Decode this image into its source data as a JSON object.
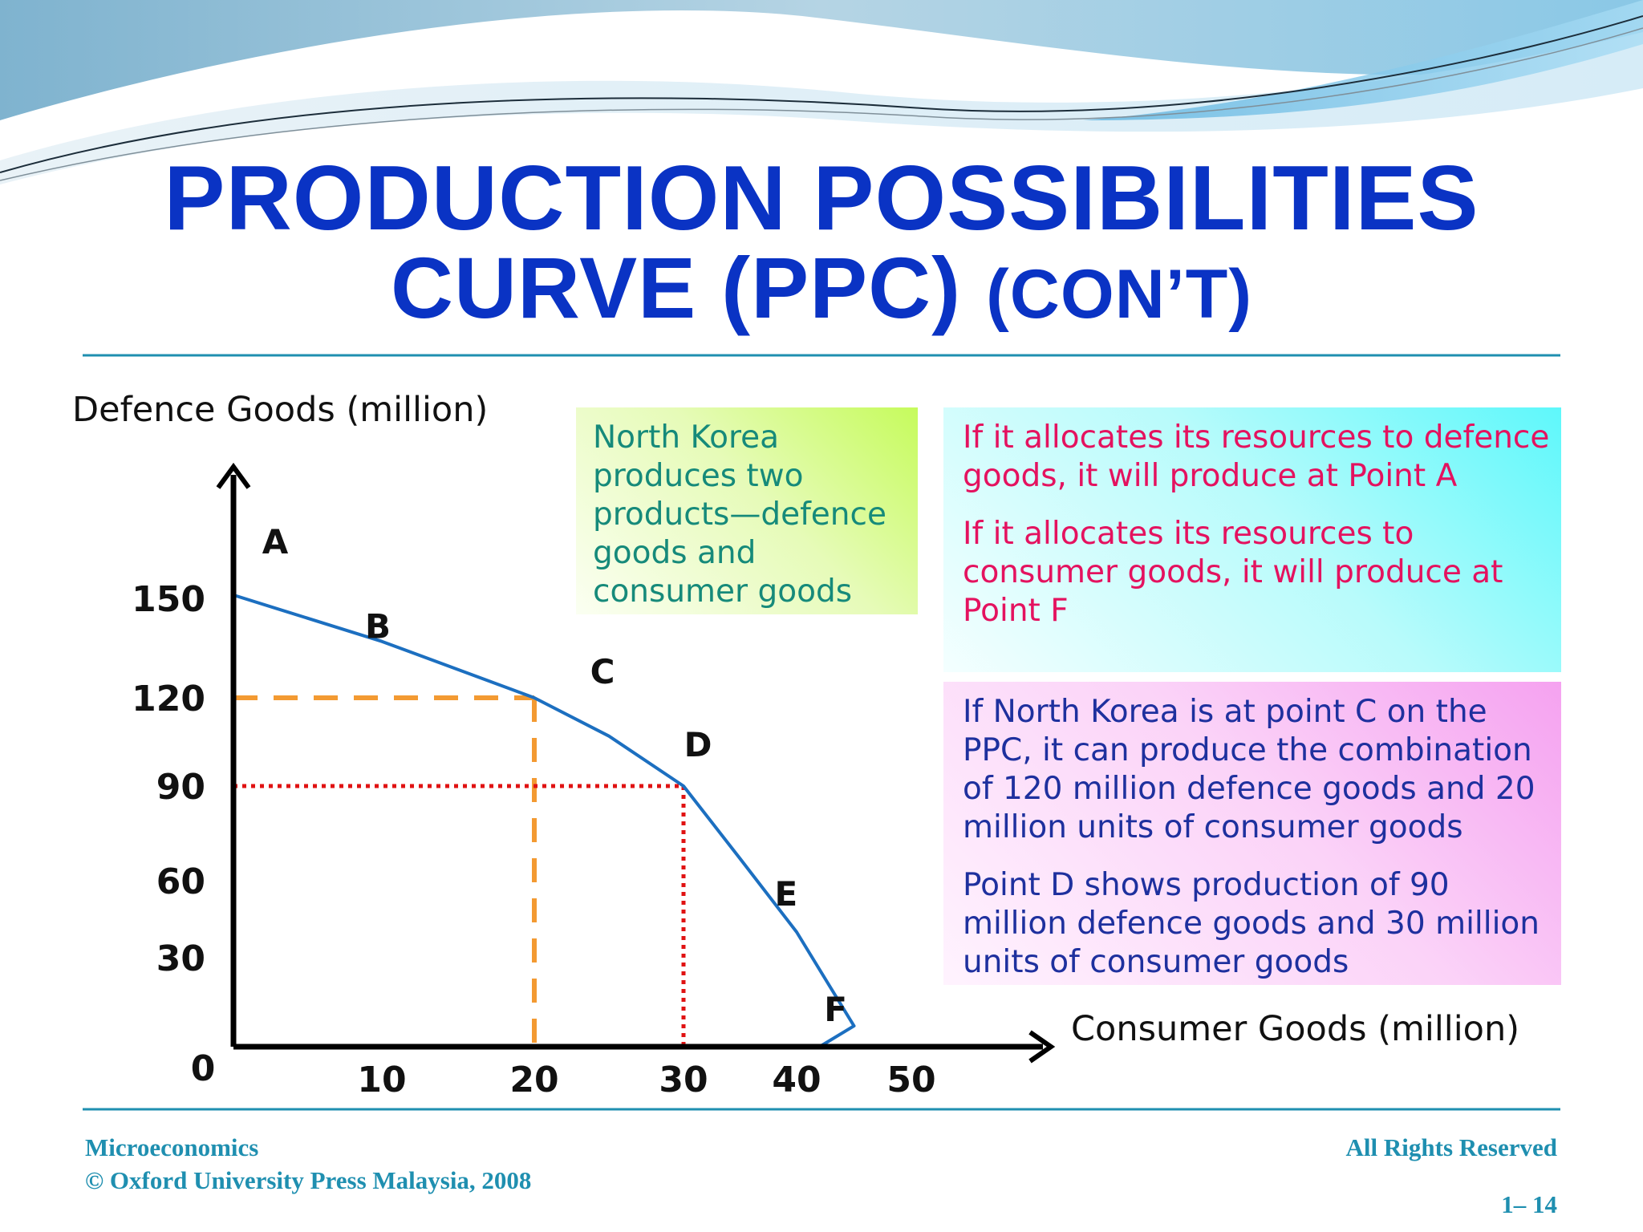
{
  "slide": {
    "title_line1": "PRODUCTION POSSIBILITIES",
    "title_line2": "CURVE (PPC)",
    "title_line2_suffix": "(CON’T)"
  },
  "chart_data": {
    "type": "line",
    "ylabel": "Defence Goods (million)",
    "xlabel": "Consumer Goods (million)",
    "origin_label": "0",
    "x_ticks": [
      10,
      20,
      30,
      40,
      50
    ],
    "y_ticks": [
      30,
      60,
      90,
      120,
      150
    ],
    "series": [
      {
        "points": [
          {
            "x": 0,
            "y": 151
          },
          {
            "x": 10,
            "y": 137
          },
          {
            "x": 20,
            "y": 120
          },
          {
            "x": 25,
            "y": 107
          },
          {
            "x": 30,
            "y": 90
          },
          {
            "x": 35,
            "y": 67
          },
          {
            "x": 40,
            "y": 40
          },
          {
            "x": 45,
            "y": 7
          },
          {
            "x": 42,
            "y": 0
          }
        ]
      }
    ],
    "point_labels": [
      {
        "label": "A",
        "x": 0,
        "y": 151
      },
      {
        "label": "B",
        "x": 10,
        "y": 137
      },
      {
        "label": "C",
        "x": 20,
        "y": 120
      },
      {
        "label": "D",
        "x": 30,
        "y": 90
      },
      {
        "label": "E",
        "x": 38,
        "y": 55
      },
      {
        "label": "F",
        "x": 42,
        "y": 0
      }
    ],
    "guides": [
      {
        "x": 20,
        "y": 120,
        "style": "dashed",
        "color": "#f39a32"
      },
      {
        "x": 30,
        "y": 90,
        "style": "dotted",
        "color": "#e01212"
      }
    ],
    "curve_color": "#1c6fc0"
  },
  "boxes": {
    "green": "North Korea produces two products—defence goods and consumer goods",
    "cyan_1": "If it allocates its resources to defence goods, it will produce  at Point A",
    "cyan_2": "If it allocates its resources to consumer goods, it will produce  at Point F",
    "pink_1": "If North Korea is at point C on the PPC, it can produce the combination of 120 million defence goods and 20 million units of consumer goods",
    "pink_2": "Point D shows production of 90 million defence goods and 30 million units of consumer goods"
  },
  "footer": {
    "course": "Microeconomics",
    "copyright": "© Oxford University Press Malaysia, 2008",
    "rights": "All Rights Reserved",
    "page": "1– 14"
  }
}
